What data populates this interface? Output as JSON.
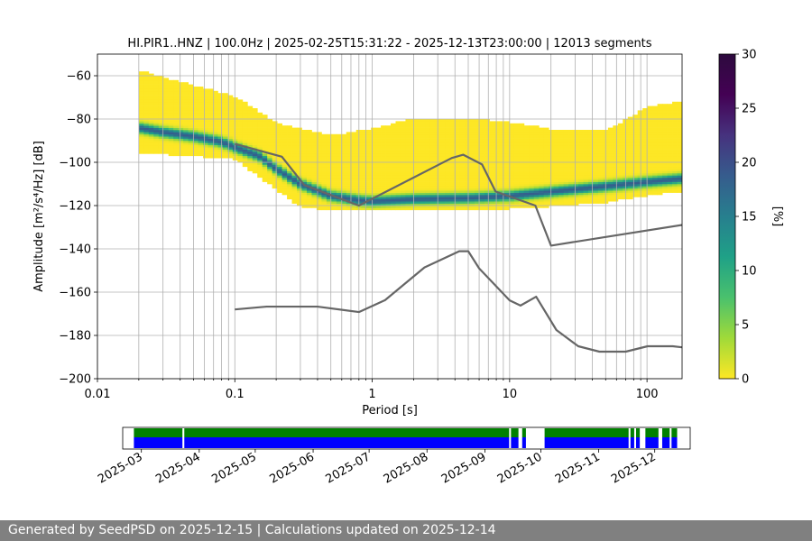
{
  "chart_data": [
    {
      "type": "heatmap",
      "title": "HI.PIR1..HNZ | 100.0Hz | 2025-02-25T15:31:22 - 2025-12-13T23:00:00 | 12013 segments",
      "xlabel": "Period [s]",
      "ylabel": "Amplitude [m²/s⁴/Hz] [dB]",
      "x_scale": "log",
      "xlim": [
        0.01,
        180
      ],
      "ylim": [
        -200,
        -50
      ],
      "x_ticks": [
        0.01,
        0.1,
        1,
        10,
        100
      ],
      "x_tick_labels": [
        "0.01",
        "0.1",
        "1",
        "10",
        "100"
      ],
      "y_ticks": [
        -200,
        -180,
        -160,
        -140,
        -120,
        -100,
        -80,
        -60
      ],
      "y_tick_labels": [
        "−200",
        "−180",
        "−160",
        "−140",
        "−120",
        "−100",
        "−80",
        "−60"
      ],
      "grid": true,
      "mode_curve": {
        "period": [
          0.02,
          0.03,
          0.05,
          0.08,
          0.1,
          0.15,
          0.2,
          0.3,
          0.5,
          0.8,
          1,
          2,
          5,
          10,
          20,
          50,
          100,
          180
        ],
        "db": [
          -84,
          -86,
          -88,
          -90.5,
          -93,
          -97,
          -103,
          -110,
          -115.5,
          -117.5,
          -118,
          -117,
          -116.5,
          -115.5,
          -113.5,
          -111,
          -109,
          -107.5
        ]
      },
      "spread": {
        "period": [
          0.02,
          0.1,
          0.2,
          0.3,
          0.5,
          1,
          2,
          5,
          10,
          20,
          50,
          100,
          180
        ],
        "upper_db": [
          -58,
          -70,
          -82,
          -85,
          -88,
          -85,
          -80,
          -80,
          -82,
          -85,
          -86,
          -75,
          -72
        ],
        "lower_db": [
          -95,
          -98,
          -112,
          -120,
          -122,
          -122,
          -122,
          -122,
          -121,
          -120,
          -118,
          -115,
          -113
        ]
      },
      "nhnm": {
        "name": "NHNM",
        "period": [
          0.1,
          0.22,
          0.32,
          0.8,
          3.8,
          4.6,
          6.3,
          7.9,
          15.4,
          20,
          354.8
        ],
        "db": [
          -91.5,
          -97.4,
          -110.5,
          -120,
          -98,
          -96.5,
          -101,
          -113.5,
          -120,
          -138.5,
          -126
        ]
      },
      "nlnm": {
        "name": "NLNM",
        "period": [
          0.1,
          0.17,
          0.4,
          0.8,
          1.24,
          2.4,
          4.3,
          5,
          6,
          10,
          12,
          15.6,
          21.9,
          31.6,
          45,
          70,
          101,
          154,
          180
        ],
        "db": [
          -168,
          -166.7,
          -166.7,
          -169.2,
          -163.7,
          -148.6,
          -141.1,
          -141.1,
          -149,
          -163.8,
          -166.2,
          -162.1,
          -177.5,
          -185,
          -187.5,
          -187.5,
          -185,
          -185,
          -185.5
        ]
      },
      "colorbar": {
        "label": "[%]",
        "min": 0,
        "max": 30,
        "ticks": [
          "0",
          "5",
          "10",
          "15",
          "20",
          "25",
          "30"
        ],
        "colormap": "viridis_r"
      }
    },
    {
      "type": "timeline",
      "tick_labels": [
        "2025-03",
        "2025-04",
        "2025-05",
        "2025-06",
        "2025-07",
        "2025-08",
        "2025-09",
        "2025-10",
        "2025-11",
        "2025-12"
      ],
      "range_start": "2025-02-19",
      "range_end": "2025-12-20",
      "data_start": "2025-02-25",
      "data_end": "2025-12-13",
      "colors": {
        "available": "#0000ff",
        "used": "#008000"
      },
      "gaps": [
        [
          "2025-03-23",
          "2025-03-24"
        ],
        [
          "2025-09-14",
          "2025-09-15"
        ],
        [
          "2025-09-19",
          "2025-09-21"
        ],
        [
          "2025-09-23",
          "2025-10-03"
        ],
        [
          "2025-11-17",
          "2025-11-18"
        ],
        [
          "2025-11-20",
          "2025-11-21"
        ],
        [
          "2025-11-23",
          "2025-11-26"
        ],
        [
          "2025-12-03",
          "2025-12-05"
        ],
        [
          "2025-12-09",
          "2025-12-10"
        ]
      ]
    }
  ],
  "footer": "Generated by SeedPSD on 2025-12-15 | Calculations updated on 2025-12-14"
}
